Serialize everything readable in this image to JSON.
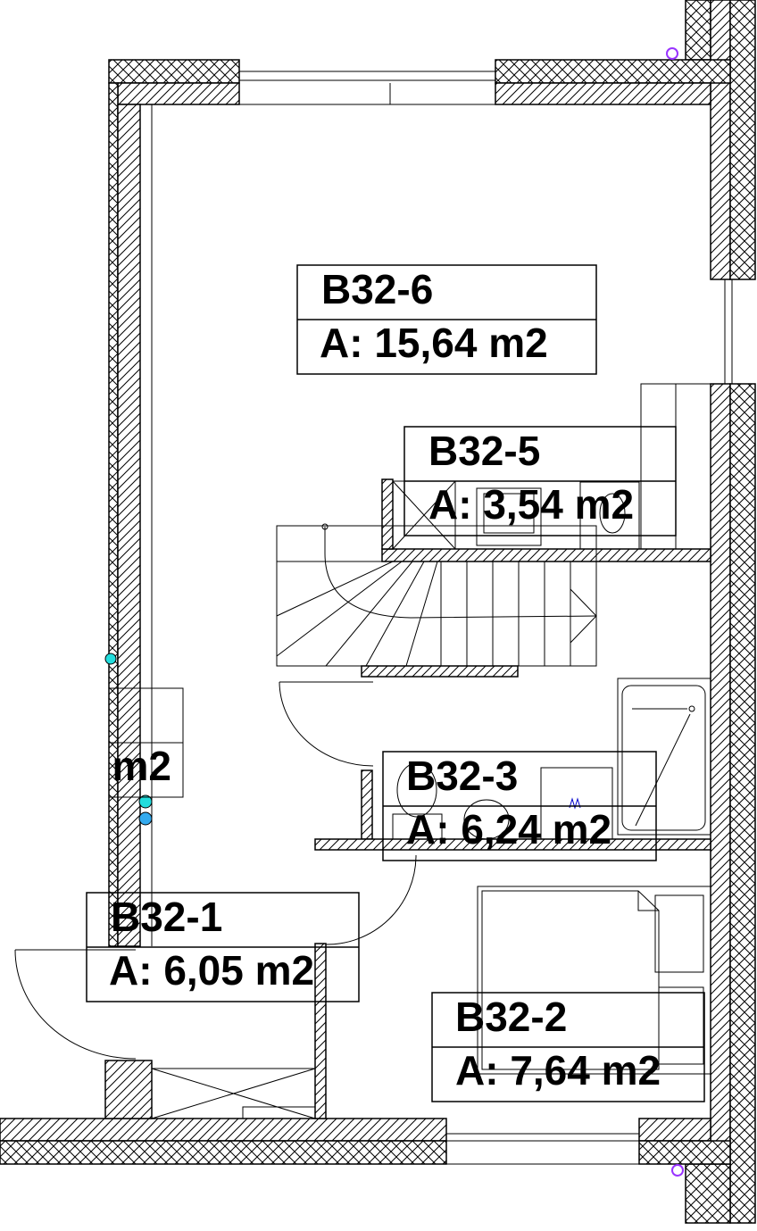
{
  "rooms": [
    {
      "id": "B32-6",
      "area": "A: 15,64 m2"
    },
    {
      "id": "B32-5",
      "area": "A: 3,54 m2"
    },
    {
      "id": "B32-3",
      "area": "A: 6,24 m2"
    },
    {
      "id": "B32-1",
      "area": "A: 6,05 m2"
    },
    {
      "id": "B32-2",
      "area": "A: 7,64 m2"
    }
  ],
  "partial_label": "m2"
}
